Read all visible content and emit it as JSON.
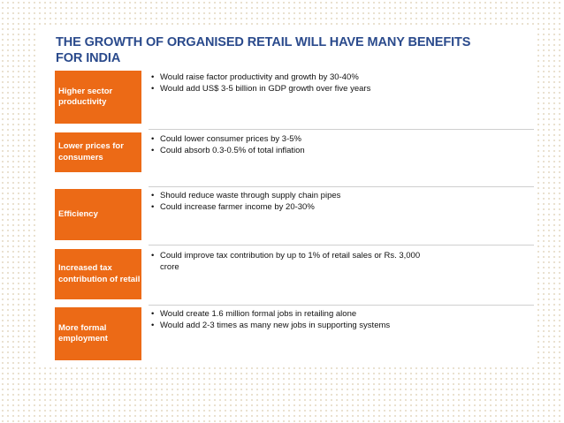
{
  "slide": {
    "title_line1": "THE GROWTH OF ORGANISED RETAIL WILL HAVE MANY BENEFITS",
    "title_line2": "FOR INDIA"
  },
  "rows": [
    {
      "label": "Higher sector productivity",
      "bullets": [
        "Would raise factor productivity and growth  by 30-40%",
        "Would add US$ 3-5 billion in GDP growth over five years"
      ]
    },
    {
      "label": "Lower prices for consumers",
      "bullets": [
        "Could lower consumer prices by 3-5%",
        "Could absorb 0.3-0.5% of total inflation"
      ]
    },
    {
      "label": "Efficiency",
      "bullets": [
        "Should reduce waste through supply chain pipes",
        "Could increase farmer income by 20-30%"
      ]
    },
    {
      "label": "Increased tax contribution of retail",
      "bullets": [
        "Could improve tax contribution by up to 1% of retail sales or Rs. 3,000 crore"
      ]
    },
    {
      "label": "More formal employment",
      "bullets": [
        "Would create 1.6 million formal jobs in retailing alone",
        "Would add 2-3 times as many new jobs in supporting systems"
      ]
    }
  ]
}
